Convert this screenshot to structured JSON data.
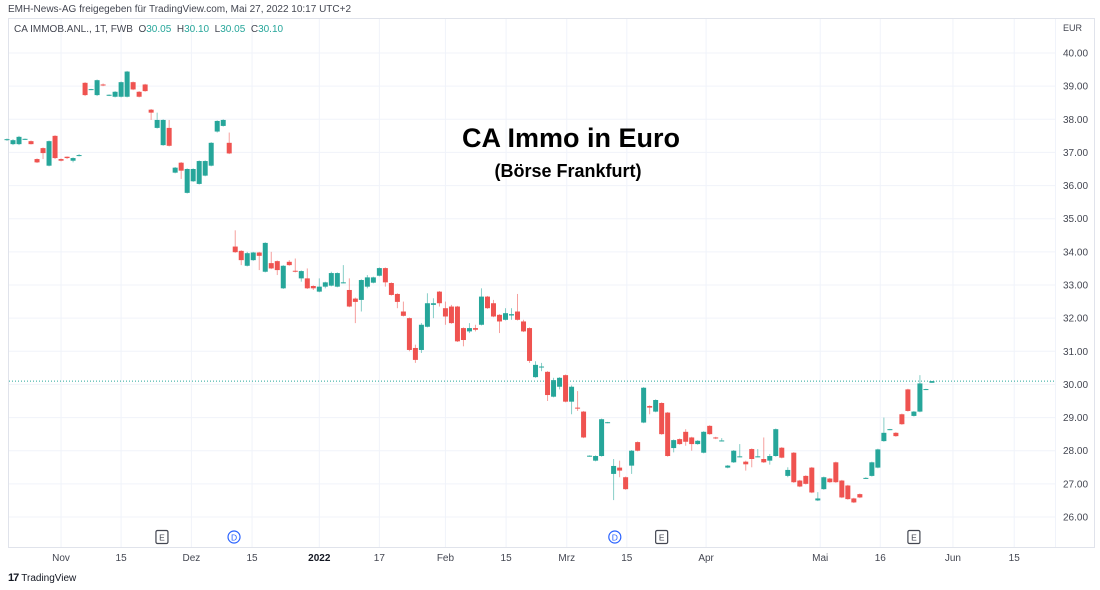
{
  "header": {
    "shared_note": "EMH-News-AG freigegeben für TradingView.com, Mai 27, 2022 10:17 UTC+2",
    "symbol": "CA IMMOB.ANL., 1T, FWB",
    "ohlc": {
      "o_label": "O",
      "o": "30.05",
      "h_label": "H",
      "h": "30.10",
      "l_label": "L",
      "l": "30.05",
      "c_label": "C",
      "c": "30.10"
    }
  },
  "branding": {
    "logo_icon": "tradingview-logo-icon",
    "name": "TradingView"
  },
  "colors": {
    "up": "#26a69a",
    "down": "#ef5350",
    "grid": "#f0f3fa",
    "last_price_line": "#26a69a",
    "dividend_marker": "#2962ff",
    "earnings_marker": "#434651"
  },
  "chart_data": {
    "type": "candlestick",
    "title": "CA Immo in Euro",
    "subtitle": "(Börse Frankfurt)",
    "currency_label": "EUR",
    "ylim": [
      26,
      40
    ],
    "y_ticks": [
      "40.00",
      "39.00",
      "38.00",
      "37.00",
      "36.00",
      "35.00",
      "34.00",
      "33.00",
      "32.00",
      "31.00",
      "30.00",
      "29.00",
      "28.00",
      "27.00",
      "26.00"
    ],
    "x_ticks": [
      {
        "label": "Nov",
        "index": 9,
        "bold": false
      },
      {
        "label": "15",
        "index": 19,
        "bold": false
      },
      {
        "label": "Dez",
        "index": 30.7,
        "bold": false
      },
      {
        "label": "15",
        "index": 40.8,
        "bold": false
      },
      {
        "label": "2022",
        "index": 52,
        "bold": true
      },
      {
        "label": "17",
        "index": 62,
        "bold": false
      },
      {
        "label": "Feb",
        "index": 73,
        "bold": false
      },
      {
        "label": "15",
        "index": 83.1,
        "bold": false
      },
      {
        "label": "Mrz",
        "index": 93.2,
        "bold": false
      },
      {
        "label": "15",
        "index": 103.2,
        "bold": false
      },
      {
        "label": "Apr",
        "index": 116.4,
        "bold": false
      },
      {
        "label": "Mai",
        "index": 135.4,
        "bold": false
      },
      {
        "label": "16",
        "index": 145.4,
        "bold": false
      },
      {
        "label": "Jun",
        "index": 157.5,
        "bold": false
      },
      {
        "label": "15",
        "index": 167.7,
        "bold": false
      }
    ],
    "events": [
      {
        "type": "earnings",
        "label": "E",
        "index": 25.8
      },
      {
        "type": "dividend",
        "label": "D",
        "index": 37.8
      },
      {
        "type": "dividend",
        "label": "D",
        "index": 101.2
      },
      {
        "type": "earnings",
        "label": "E",
        "index": 109
      },
      {
        "type": "earnings",
        "label": "E",
        "index": 151
      }
    ],
    "last_price": 30.1,
    "ohlc_fields": [
      "open",
      "high",
      "low",
      "close"
    ],
    "candles": [
      [
        37.38,
        37.42,
        37.35,
        37.4
      ],
      [
        37.25,
        37.4,
        37.22,
        37.37
      ],
      [
        37.25,
        37.5,
        37.22,
        37.47
      ],
      [
        37.4,
        37.42,
        37.38,
        37.41
      ],
      [
        37.34,
        37.36,
        37.24,
        37.25
      ],
      [
        36.8,
        36.82,
        36.68,
        36.7
      ],
      [
        37.13,
        37.15,
        36.8,
        36.98
      ],
      [
        36.6,
        37.36,
        36.58,
        37.34
      ],
      [
        37.5,
        37.52,
        36.8,
        36.83
      ],
      [
        36.8,
        36.82,
        36.73,
        36.75
      ],
      [
        36.87,
        36.88,
        36.8,
        36.83
      ],
      [
        36.75,
        36.85,
        36.7,
        36.83
      ],
      [
        36.9,
        36.95,
        36.88,
        36.92
      ],
      [
        39.1,
        39.12,
        38.7,
        38.73
      ],
      [
        38.9,
        38.92,
        38.88,
        38.91
      ],
      [
        38.73,
        39.2,
        38.7,
        39.18
      ],
      [
        39.05,
        39.08,
        39.0,
        39.02
      ],
      [
        38.73,
        38.75,
        38.7,
        38.74
      ],
      [
        38.68,
        38.85,
        38.66,
        38.83
      ],
      [
        38.68,
        39.14,
        38.66,
        39.12
      ],
      [
        38.68,
        39.46,
        38.66,
        39.44
      ],
      [
        39.12,
        39.14,
        38.88,
        38.9
      ],
      [
        38.83,
        38.85,
        38.66,
        38.68
      ],
      [
        39.05,
        39.07,
        38.83,
        38.85
      ],
      [
        38.29,
        38.31,
        37.98,
        38.2
      ],
      [
        37.74,
        38.2,
        37.72,
        37.98
      ],
      [
        37.22,
        38.0,
        37.2,
        37.98
      ],
      [
        37.74,
        37.98,
        37.18,
        37.2
      ],
      [
        36.39,
        36.56,
        36.37,
        36.54
      ],
      [
        36.69,
        36.71,
        36.2,
        36.45
      ],
      [
        35.78,
        36.52,
        35.76,
        36.5
      ],
      [
        36.13,
        36.52,
        36.11,
        36.5
      ],
      [
        36.05,
        36.76,
        36.03,
        36.74
      ],
      [
        36.3,
        36.76,
        36.28,
        36.74
      ],
      [
        36.6,
        37.31,
        36.58,
        37.29
      ],
      [
        37.63,
        37.97,
        37.6,
        37.95
      ],
      [
        37.8,
        38.0,
        37.78,
        37.98
      ],
      [
        37.29,
        37.6,
        36.95,
        36.97
      ],
      [
        34.16,
        34.65,
        33.97,
        33.99
      ],
      [
        34.03,
        34.05,
        33.6,
        33.75
      ],
      [
        33.58,
        34.0,
        33.56,
        33.96
      ],
      [
        33.75,
        34.0,
        33.73,
        33.98
      ],
      [
        33.98,
        34.0,
        33.45,
        33.88
      ],
      [
        33.4,
        34.29,
        33.38,
        34.27
      ],
      [
        33.66,
        34.0,
        33.48,
        33.5
      ],
      [
        33.72,
        33.74,
        33.3,
        33.45
      ],
      [
        32.9,
        33.6,
        32.88,
        33.58
      ],
      [
        33.7,
        33.75,
        33.58,
        33.6
      ],
      [
        33.43,
        33.8,
        33.38,
        33.4
      ],
      [
        33.2,
        33.44,
        33.1,
        33.42
      ],
      [
        33.2,
        33.5,
        32.88,
        32.9
      ],
      [
        32.97,
        32.99,
        32.85,
        32.9
      ],
      [
        32.8,
        33.2,
        32.78,
        32.95
      ],
      [
        32.95,
        33.1,
        32.9,
        33.08
      ],
      [
        32.98,
        33.4,
        32.96,
        33.36
      ],
      [
        32.95,
        33.38,
        32.93,
        33.36
      ],
      [
        33.07,
        33.6,
        33.05,
        33.08
      ],
      [
        32.85,
        33.2,
        32.33,
        32.35
      ],
      [
        32.59,
        32.62,
        31.85,
        32.49
      ],
      [
        32.55,
        33.17,
        32.2,
        33.15
      ],
      [
        32.95,
        33.3,
        32.9,
        33.23
      ],
      [
        33.07,
        33.25,
        33.05,
        33.23
      ],
      [
        33.28,
        33.53,
        33.26,
        33.51
      ],
      [
        33.51,
        33.53,
        32.95,
        33.08
      ],
      [
        33.06,
        33.08,
        32.68,
        32.7
      ],
      [
        32.73,
        32.75,
        32.3,
        32.49
      ],
      [
        32.2,
        32.5,
        32.05,
        32.07
      ],
      [
        32.0,
        32.02,
        31.0,
        31.04
      ],
      [
        31.1,
        31.2,
        30.65,
        30.74
      ],
      [
        31.04,
        31.85,
        30.95,
        31.8
      ],
      [
        31.74,
        32.75,
        31.72,
        32.45
      ],
      [
        32.4,
        32.6,
        32.0,
        32.45
      ],
      [
        32.8,
        32.82,
        32.35,
        32.45
      ],
      [
        32.3,
        32.5,
        31.8,
        32.05
      ],
      [
        32.35,
        32.4,
        31.83,
        31.85
      ],
      [
        32.35,
        32.37,
        31.28,
        31.3
      ],
      [
        31.7,
        31.72,
        31.15,
        31.34
      ],
      [
        31.6,
        31.85,
        31.55,
        31.7
      ],
      [
        31.7,
        31.8,
        31.6,
        31.65
      ],
      [
        31.8,
        32.9,
        31.78,
        32.65
      ],
      [
        32.65,
        32.67,
        32.28,
        32.3
      ],
      [
        32.45,
        32.55,
        32.03,
        32.05
      ],
      [
        32.1,
        32.12,
        31.55,
        31.9
      ],
      [
        31.95,
        32.3,
        31.93,
        32.15
      ],
      [
        32.08,
        32.3,
        31.95,
        32.12
      ],
      [
        32.2,
        32.73,
        31.93,
        31.95
      ],
      [
        31.9,
        31.95,
        31.58,
        31.6
      ],
      [
        31.7,
        31.72,
        30.65,
        30.71
      ],
      [
        30.22,
        30.7,
        30.2,
        30.59
      ],
      [
        30.53,
        30.65,
        30.4,
        30.54
      ],
      [
        30.38,
        30.4,
        29.5,
        29.68
      ],
      [
        29.63,
        30.2,
        29.61,
        30.13
      ],
      [
        29.93,
        30.22,
        29.85,
        30.2
      ],
      [
        30.28,
        30.3,
        29.46,
        29.48
      ],
      [
        29.48,
        29.97,
        29.1,
        29.93
      ],
      [
        29.3,
        29.8,
        29.2,
        29.29
      ],
      [
        29.18,
        29.2,
        28.38,
        28.4
      ],
      [
        27.84,
        27.86,
        27.82,
        27.85
      ],
      [
        27.7,
        27.86,
        27.68,
        27.84
      ],
      [
        27.84,
        28.97,
        27.82,
        28.95
      ],
      [
        28.85,
        28.87,
        28.83,
        28.86
      ],
      [
        27.3,
        27.75,
        26.51,
        27.54
      ],
      [
        27.49,
        27.7,
        27.2,
        27.4
      ],
      [
        27.2,
        27.22,
        26.82,
        26.84
      ],
      [
        27.55,
        28.02,
        27.3,
        28.0
      ],
      [
        28.26,
        28.28,
        27.98,
        28.0
      ],
      [
        28.85,
        29.92,
        28.83,
        29.9
      ],
      [
        29.35,
        29.37,
        29.1,
        29.3
      ],
      [
        29.18,
        29.55,
        29.16,
        29.53
      ],
      [
        29.44,
        29.46,
        28.48,
        28.5
      ],
      [
        29.15,
        29.17,
        27.82,
        27.84
      ],
      [
        28.08,
        28.34,
        27.95,
        28.32
      ],
      [
        28.35,
        28.37,
        28.18,
        28.2
      ],
      [
        28.57,
        28.65,
        28.15,
        28.27
      ],
      [
        28.4,
        28.42,
        28.0,
        28.2
      ],
      [
        28.2,
        28.32,
        28.18,
        28.3
      ],
      [
        27.94,
        28.59,
        27.92,
        28.57
      ],
      [
        28.75,
        28.77,
        28.48,
        28.5
      ],
      [
        28.4,
        28.42,
        28.35,
        28.37
      ],
      [
        28.3,
        28.38,
        28.28,
        28.31
      ],
      [
        27.49,
        27.57,
        27.47,
        27.55
      ],
      [
        27.65,
        28.02,
        27.63,
        28.0
      ],
      [
        27.82,
        28.2,
        27.8,
        27.83
      ],
      [
        27.67,
        27.7,
        27.4,
        27.59
      ],
      [
        28.05,
        28.07,
        27.5,
        27.75
      ],
      [
        27.82,
        28.05,
        27.8,
        27.83
      ],
      [
        27.75,
        28.4,
        27.63,
        27.65
      ],
      [
        27.7,
        27.9,
        27.58,
        27.84
      ],
      [
        27.84,
        28.67,
        27.82,
        28.65
      ],
      [
        28.09,
        28.11,
        27.77,
        27.79
      ],
      [
        27.24,
        27.5,
        27.2,
        27.42
      ],
      [
        27.94,
        27.96,
        27.03,
        27.05
      ],
      [
        27.1,
        27.12,
        26.9,
        26.92
      ],
      [
        27.24,
        27.26,
        26.98,
        27.0
      ],
      [
        27.49,
        27.51,
        26.72,
        26.74
      ],
      [
        26.5,
        26.75,
        26.48,
        26.56
      ],
      [
        26.84,
        27.22,
        26.82,
        27.2
      ],
      [
        27.16,
        27.18,
        27.03,
        27.05
      ],
      [
        27.65,
        27.67,
        27.03,
        27.05
      ],
      [
        27.1,
        27.12,
        26.57,
        26.59
      ],
      [
        26.95,
        26.97,
        26.52,
        26.54
      ],
      [
        26.56,
        26.58,
        26.42,
        26.44
      ],
      [
        26.69,
        26.71,
        26.57,
        26.59
      ],
      [
        27.17,
        27.2,
        27.15,
        27.18
      ],
      [
        27.24,
        27.67,
        27.22,
        27.65
      ],
      [
        27.49,
        28.06,
        27.47,
        28.04
      ],
      [
        28.29,
        29.0,
        28.27,
        28.54
      ],
      [
        28.64,
        28.66,
        28.62,
        28.65
      ],
      [
        28.54,
        28.56,
        28.42,
        28.44
      ],
      [
        29.1,
        29.12,
        28.78,
        28.8
      ],
      [
        29.85,
        29.87,
        29.18,
        29.2
      ],
      [
        29.05,
        29.2,
        29.03,
        29.18
      ],
      [
        29.18,
        30.28,
        29.16,
        30.03
      ],
      [
        29.85,
        29.87,
        29.83,
        29.86
      ],
      [
        30.05,
        30.1,
        30.05,
        30.1
      ]
    ]
  }
}
